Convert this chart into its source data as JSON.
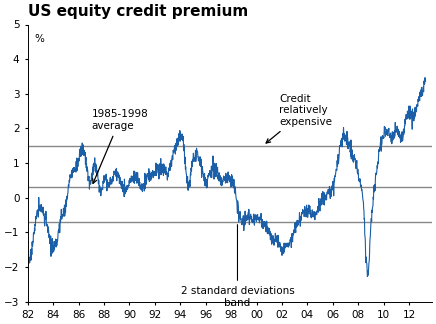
{
  "title": "US equity credit premium",
  "ylabel": "%",
  "xlim": [
    1982,
    2013.8
  ],
  "ylim": [
    -3,
    5
  ],
  "yticks": [
    -3,
    -2,
    -1,
    0,
    1,
    2,
    3,
    4,
    5
  ],
  "xticks": [
    1982,
    1984,
    1986,
    1988,
    1990,
    1992,
    1994,
    1996,
    1998,
    2000,
    2002,
    2004,
    2006,
    2008,
    2010,
    2012
  ],
  "xticklabels": [
    "82",
    "84",
    "86",
    "88",
    "90",
    "92",
    "94",
    "96",
    "98",
    "00",
    "02",
    "04",
    "06",
    "08",
    "10",
    "12"
  ],
  "hlines": [
    1.5,
    0.3,
    -0.7
  ],
  "hline_color": "#888888",
  "line_color": "#1a5fa8",
  "background_color": "#ffffff",
  "title_fontsize": 11,
  "axis_fontsize": 7.5,
  "annot_fontsize": 7.5
}
